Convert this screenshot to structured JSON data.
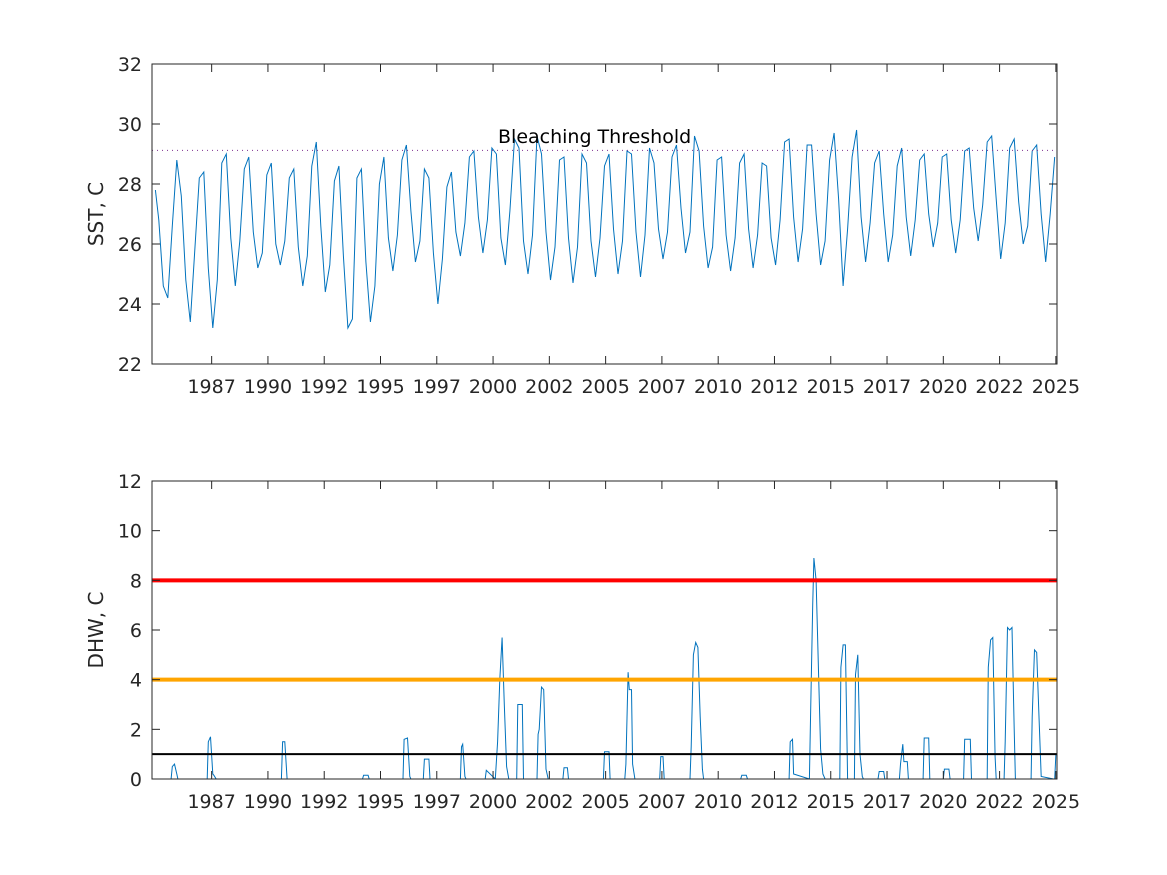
{
  "chart_data": [
    {
      "type": "line",
      "ylabel": "SST, C",
      "xlabel": "",
      "title": "",
      "xlim": [
        1984.85,
        2025.05
      ],
      "ylim": [
        22,
        32
      ],
      "yticks": [
        22,
        24,
        26,
        28,
        30,
        32
      ],
      "xtick_labels": [
        "1987",
        "1990",
        "1992",
        "1995",
        "1997",
        "2000",
        "2002",
        "2005",
        "2007",
        "2010",
        "2012",
        "2015",
        "2017",
        "2020",
        "2022",
        "2025"
      ],
      "grid": false,
      "series": [
        {
          "color": "#0072BD",
          "x": [
            1985.0,
            1985.15,
            1985.35,
            1985.55,
            1985.75,
            1985.95,
            1986.15,
            1986.35,
            1986.55,
            1986.75,
            1986.95,
            1987.15,
            1987.35,
            1987.55,
            1987.75,
            1987.95,
            1988.15,
            1988.35,
            1988.55,
            1988.75,
            1988.95,
            1989.15,
            1989.35,
            1989.55,
            1989.75,
            1989.95,
            1990.15,
            1990.35,
            1990.55,
            1990.75,
            1990.95,
            1991.15,
            1991.35,
            1991.55,
            1991.75,
            1991.95,
            1992.15,
            1992.35,
            1992.55,
            1992.75,
            1992.95,
            1993.15,
            1993.35,
            1993.55,
            1993.75,
            1993.95,
            1994.15,
            1994.35,
            1994.55,
            1994.75,
            1994.95,
            1995.15,
            1995.35,
            1995.55,
            1995.75,
            1995.95,
            1996.15,
            1996.35,
            1996.55,
            1996.75,
            1996.95,
            1997.15,
            1997.35,
            1997.55,
            1997.75,
            1997.95,
            1998.15,
            1998.35,
            1998.55,
            1998.75,
            1998.95,
            1999.15,
            1999.35,
            1999.55,
            1999.75,
            1999.95,
            2000.15,
            2000.35,
            2000.55,
            2000.75,
            2000.95,
            2001.15,
            2001.35,
            2001.55,
            2001.75,
            2001.95,
            2002.15,
            2002.35,
            2002.55,
            2002.75,
            2002.95,
            2003.15,
            2003.35,
            2003.55,
            2003.75,
            2003.95,
            2004.15,
            2004.35,
            2004.55,
            2004.75,
            2004.95,
            2005.15,
            2005.35,
            2005.55,
            2005.75,
            2005.95,
            2006.15,
            2006.35,
            2006.55,
            2006.75,
            2006.95,
            2007.15,
            2007.35,
            2007.55,
            2007.75,
            2007.95,
            2008.15,
            2008.35,
            2008.55,
            2008.75,
            2008.95,
            2009.15,
            2009.35,
            2009.55,
            2009.75,
            2009.95,
            2010.15,
            2010.35,
            2010.55,
            2010.75,
            2010.95,
            2011.15,
            2011.35,
            2011.55,
            2011.75,
            2011.95,
            2012.15,
            2012.35,
            2012.55,
            2012.75,
            2012.95,
            2013.15,
            2013.35,
            2013.55,
            2013.75,
            2013.95,
            2014.15,
            2014.35,
            2014.55,
            2014.75,
            2014.95,
            2015.15,
            2015.35,
            2015.55,
            2015.75,
            2015.95,
            2016.15,
            2016.35,
            2016.55,
            2016.75,
            2016.95,
            2017.15,
            2017.35,
            2017.55,
            2017.75,
            2017.95,
            2018.15,
            2018.35,
            2018.55,
            2018.75,
            2018.95,
            2019.15,
            2019.35,
            2019.55,
            2019.75,
            2019.95,
            2020.15,
            2020.35,
            2020.55,
            2020.75,
            2020.95,
            2021.15,
            2021.35,
            2021.55,
            2021.75,
            2021.95,
            2022.15,
            2022.35,
            2022.55,
            2022.75,
            2022.95,
            2023.15,
            2023.35,
            2023.55,
            2023.75,
            2023.95,
            2024.15,
            2024.35,
            2024.55,
            2024.75,
            2024.95
          ],
          "y": [
            27.8,
            26.8,
            24.6,
            24.2,
            26.6,
            28.8,
            27.6,
            24.8,
            23.4,
            25.8,
            28.2,
            28.4,
            25.2,
            23.2,
            24.8,
            28.7,
            29.0,
            26.2,
            24.6,
            26.1,
            28.5,
            28.9,
            26.4,
            25.2,
            25.7,
            28.3,
            28.7,
            26.0,
            25.3,
            26.1,
            28.2,
            28.5,
            25.9,
            24.6,
            25.6,
            28.6,
            29.4,
            26.6,
            24.4,
            25.3,
            28.1,
            28.6,
            25.6,
            23.2,
            23.5,
            28.2,
            28.5,
            25.4,
            23.4,
            24.6,
            28.0,
            28.9,
            26.2,
            25.1,
            26.3,
            28.8,
            29.3,
            27.1,
            25.4,
            26.1,
            28.5,
            28.2,
            25.7,
            24.0,
            25.5,
            27.9,
            28.4,
            26.4,
            25.6,
            26.7,
            28.9,
            29.1,
            26.9,
            25.7,
            26.8,
            29.2,
            29.0,
            26.2,
            25.3,
            27.1,
            29.5,
            29.2,
            26.1,
            25.0,
            26.3,
            29.6,
            29.0,
            26.4,
            24.8,
            25.9,
            28.8,
            28.9,
            26.2,
            24.7,
            25.9,
            29.0,
            28.7,
            26.1,
            24.9,
            26.2,
            28.6,
            29.0,
            26.5,
            25.0,
            26.1,
            29.1,
            29.0,
            26.4,
            24.9,
            26.3,
            29.2,
            28.7,
            26.5,
            25.5,
            26.4,
            28.9,
            29.3,
            27.2,
            25.7,
            26.4,
            29.6,
            29.1,
            26.6,
            25.2,
            25.9,
            28.8,
            28.9,
            26.3,
            25.1,
            26.2,
            28.7,
            29.0,
            26.5,
            25.2,
            26.3,
            28.7,
            28.6,
            26.2,
            25.3,
            26.8,
            29.4,
            29.5,
            26.9,
            25.4,
            26.5,
            29.3,
            29.3,
            27.0,
            25.3,
            26.1,
            28.8,
            29.7,
            27.5,
            24.6,
            26.5,
            28.9,
            29.8,
            26.9,
            25.4,
            26.7,
            28.7,
            29.1,
            27.0,
            25.4,
            26.3,
            28.6,
            29.2,
            26.9,
            25.6,
            26.8,
            28.8,
            29.0,
            27.0,
            25.9,
            26.7,
            28.9,
            29.0,
            26.8,
            25.7,
            26.8,
            29.1,
            29.2,
            27.2,
            26.1,
            27.3,
            29.4,
            29.6,
            27.5,
            25.5,
            26.7,
            29.2,
            29.5,
            27.4,
            26.0,
            26.6,
            29.1,
            29.3,
            27.0,
            25.4,
            27.0,
            28.9
          ]
        }
      ],
      "annotations": [
        {
          "text": "Bleaching Threshold",
          "x": 2000.4,
          "y": 29.4
        },
        {
          "type": "hline",
          "y": 29.12,
          "style": "dotted",
          "color": "#7E2F8E"
        }
      ]
    },
    {
      "type": "line",
      "ylabel": "DHW, C",
      "xlabel": "",
      "title": "",
      "xlim": [
        1984.85,
        2025.05
      ],
      "ylim": [
        0,
        12
      ],
      "yticks": [
        0,
        2,
        4,
        6,
        8,
        10,
        12
      ],
      "xtick_labels": [
        "1987",
        "1990",
        "1992",
        "1995",
        "1997",
        "2000",
        "2002",
        "2005",
        "2007",
        "2010",
        "2012",
        "2015",
        "2017",
        "2020",
        "2022",
        "2025"
      ],
      "grid": false,
      "series": [
        {
          "color": "#0072BD",
          "x": [
            1984.9,
            1985.7,
            1985.75,
            1985.85,
            1985.95,
            1986.0,
            1987.3,
            1987.35,
            1987.45,
            1987.55,
            1987.6,
            1987.7,
            1990.6,
            1990.65,
            1990.75,
            1990.85,
            1994.2,
            1994.25,
            1994.45,
            1994.5,
            1996.0,
            1996.05,
            1996.2,
            1996.3,
            1996.35,
            1996.9,
            1996.95,
            1997.15,
            1997.2,
            1998.55,
            1998.6,
            1998.65,
            1998.75,
            1998.8,
            1999.65,
            1999.7,
            2000.1,
            2000.2,
            2000.3,
            2000.4,
            2000.5,
            2000.6,
            2000.7,
            2001.05,
            2001.1,
            2001.3,
            2001.35,
            2001.95,
            2002.0,
            2002.05,
            2002.15,
            2002.25,
            2002.35,
            2002.45,
            2003.1,
            2003.15,
            2003.3,
            2003.35,
            2004.9,
            2004.95,
            2005.15,
            2005.2,
            2005.85,
            2005.9,
            2006.0,
            2006.05,
            2006.15,
            2006.2,
            2006.3,
            2006.4,
            2007.4,
            2007.45,
            2007.55,
            2007.6,
            2008.75,
            2008.8,
            2008.9,
            2009.0,
            2009.1,
            2009.2,
            2009.3,
            2009.35,
            2011.0,
            2011.05,
            2011.25,
            2011.3,
            2013.15,
            2013.2,
            2013.3,
            2013.35,
            2014.05,
            2014.1,
            2014.2,
            2014.25,
            2014.35,
            2014.45,
            2014.55,
            2014.65,
            2014.75,
            2015.4,
            2015.45,
            2015.55,
            2015.65,
            2015.75,
            2016.05,
            2016.1,
            2016.2,
            2016.3,
            2016.4,
            2016.45,
            2017.1,
            2017.15,
            2017.35,
            2017.4,
            2018.05,
            2018.1,
            2018.2,
            2018.25,
            2018.4,
            2018.45,
            2019.1,
            2019.15,
            2019.35,
            2019.4,
            2020.0,
            2020.05,
            2020.25,
            2020.3,
            2020.9,
            2020.95,
            2021.2,
            2021.25,
            2021.95,
            2022.0,
            2022.1,
            2022.2,
            2022.3,
            2022.35,
            2022.7,
            2022.75,
            2022.85,
            2022.95,
            2023.05,
            2023.15,
            2023.2,
            2023.9,
            2023.95,
            2024.05,
            2024.15,
            2024.25,
            2024.35,
            2024.9,
            2024.95,
            2025.0
          ],
          "y": [
            0,
            0,
            0.5,
            0.6,
            0.2,
            0,
            0,
            1.5,
            1.7,
            0.2,
            0.15,
            0,
            0,
            1.5,
            1.5,
            0,
            0,
            0.15,
            0.15,
            0,
            0,
            1.6,
            1.65,
            0.1,
            0,
            0,
            0.8,
            0.8,
            0,
            0,
            1.3,
            1.4,
            0.1,
            0,
            0,
            0.35,
            0,
            1.5,
            4.0,
            5.7,
            3.0,
            0.5,
            0,
            0,
            3.0,
            3.0,
            0,
            0,
            1.8,
            2.0,
            3.7,
            3.6,
            0.4,
            0,
            0,
            0.45,
            0.45,
            0,
            0,
            1.1,
            1.1,
            0,
            0,
            0.6,
            4.3,
            3.6,
            3.6,
            0.6,
            0,
            0,
            0,
            0.9,
            0.9,
            0,
            0,
            1.3,
            5.0,
            5.5,
            5.3,
            2.5,
            0.4,
            0,
            0,
            0.15,
            0.15,
            0,
            0,
            1.5,
            1.6,
            0.2,
            0,
            2.4,
            7.0,
            8.9,
            8.0,
            4.5,
            1.2,
            0.2,
            0,
            0,
            4.5,
            5.4,
            5.4,
            0,
            0,
            4.2,
            5.0,
            1.0,
            0.1,
            0,
            0,
            0.3,
            0.3,
            0,
            0,
            0.6,
            1.4,
            0.7,
            0.7,
            0,
            0,
            1.65,
            1.65,
            0,
            0,
            0.4,
            0.4,
            0,
            0,
            1.6,
            1.6,
            0,
            0,
            4.5,
            5.6,
            5.7,
            0.9,
            0,
            0,
            1.5,
            6.1,
            6.0,
            6.1,
            2.0,
            0,
            0,
            2.5,
            5.2,
            5.1,
            2.5,
            0.1,
            0,
            0,
            1.0
          ]
        }
      ],
      "annotations": [
        {
          "type": "hline",
          "y": 8,
          "color": "#FF0000"
        },
        {
          "type": "hline",
          "y": 4,
          "color": "#FFA500"
        },
        {
          "type": "hline",
          "y": 1,
          "color": "#000000"
        }
      ]
    }
  ]
}
